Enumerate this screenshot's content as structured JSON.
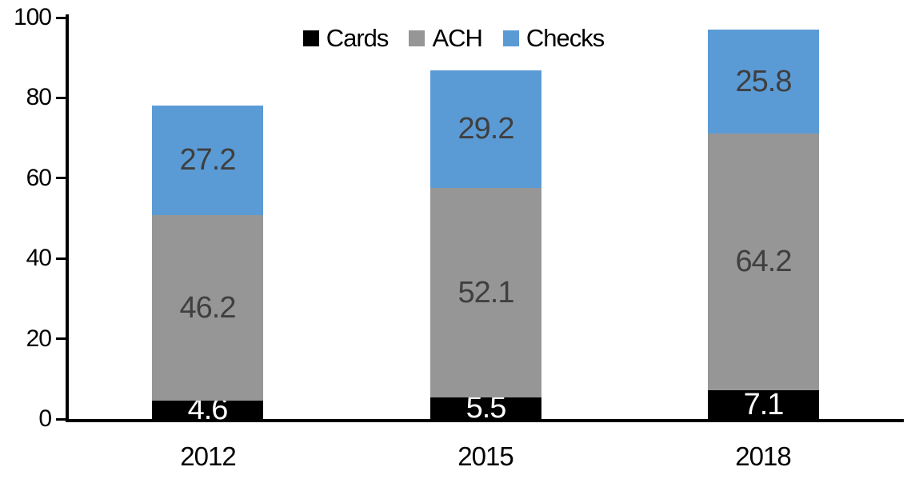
{
  "chart_data": {
    "type": "bar",
    "variant": "stacked-column",
    "categories": [
      "2012",
      "2015",
      "2018"
    ],
    "series": [
      {
        "name": "Cards",
        "color": "#000000",
        "label_color": "#ffffff",
        "values": [
          4.6,
          5.5,
          7.1
        ]
      },
      {
        "name": "ACH",
        "color": "#969696",
        "label_color": "#3f3f3f",
        "values": [
          46.2,
          52.1,
          64.2
        ]
      },
      {
        "name": "Checks",
        "color": "#5b9bd5",
        "label_color": "#3f3f3f",
        "values": [
          27.2,
          29.2,
          25.8
        ]
      }
    ],
    "stack_totals": [
      78.0,
      86.8,
      97.1
    ],
    "title": "",
    "xlabel": "",
    "ylabel": "",
    "ylim": [
      0,
      100
    ],
    "y_ticks": [
      0,
      20,
      40,
      60,
      80,
      100
    ],
    "grid": false,
    "legend_position": "top-center",
    "data_labels": true,
    "axis_color": "#000000",
    "background_color": "#ffffff"
  }
}
